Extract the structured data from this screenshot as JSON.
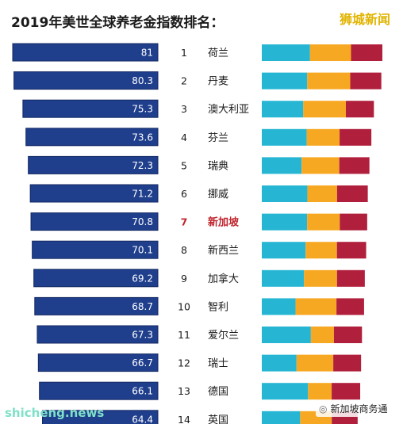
{
  "title": "2019年美世全球养老金指数排名：",
  "watermark": "狮城新闻",
  "footer_left": "shicheng.news",
  "footer_right": "新加坡商务通",
  "colors": {
    "bar": "#1f3e8c",
    "bar_edge": "#142a63",
    "label": "#ffffff",
    "rank_text": "#1a1a1a",
    "highlight": "#c0252e",
    "seg1": "#26b6d3",
    "seg2": "#f7a823",
    "seg3": "#b01f3c"
  },
  "chart_data": {
    "type": "bar",
    "highlight_index": 6,
    "rows": [
      {
        "rank": "1",
        "country": "荷兰",
        "value": 81,
        "label": "81",
        "segments": [
          0.4,
          0.34,
          0.26
        ]
      },
      {
        "rank": "2",
        "country": "丹麦",
        "value": 80.3,
        "label": "80.3",
        "segments": [
          0.38,
          0.36,
          0.26
        ]
      },
      {
        "rank": "3",
        "country": "澳大利亚",
        "value": 75.3,
        "label": "75.3",
        "segments": [
          0.37,
          0.38,
          0.25
        ]
      },
      {
        "rank": "4",
        "country": "芬兰",
        "value": 73.6,
        "label": "73.6",
        "segments": [
          0.41,
          0.3,
          0.29
        ]
      },
      {
        "rank": "5",
        "country": "瑞典",
        "value": 72.3,
        "label": "72.3",
        "segments": [
          0.37,
          0.35,
          0.28
        ]
      },
      {
        "rank": "6",
        "country": "挪威",
        "value": 71.2,
        "label": "71.2",
        "segments": [
          0.43,
          0.28,
          0.29
        ]
      },
      {
        "rank": "7",
        "country": "新加坡",
        "value": 70.8,
        "label": "70.8",
        "segments": [
          0.43,
          0.31,
          0.26
        ]
      },
      {
        "rank": "8",
        "country": "新西兰",
        "value": 70.1,
        "label": "70.1",
        "segments": [
          0.42,
          0.3,
          0.28
        ]
      },
      {
        "rank": "9",
        "country": "加拿大",
        "value": 69.2,
        "label": "69.2",
        "segments": [
          0.41,
          0.32,
          0.27
        ]
      },
      {
        "rank": "10",
        "country": "智利",
        "value": 68.7,
        "label": "68.7",
        "segments": [
          0.33,
          0.4,
          0.27
        ]
      },
      {
        "rank": "11",
        "country": "爱尔兰",
        "value": 67.3,
        "label": "67.3",
        "segments": [
          0.49,
          0.23,
          0.28
        ]
      },
      {
        "rank": "12",
        "country": "瑞士",
        "value": 66.7,
        "label": "66.7",
        "segments": [
          0.35,
          0.37,
          0.28
        ]
      },
      {
        "rank": "13",
        "country": "德国",
        "value": 66.1,
        "label": "66.1",
        "segments": [
          0.47,
          0.24,
          0.29
        ]
      },
      {
        "rank": "14",
        "country": "英国",
        "value": 64.4,
        "label": "64.4",
        "segments": [
          0.4,
          0.33,
          0.27
        ]
      }
    ]
  }
}
